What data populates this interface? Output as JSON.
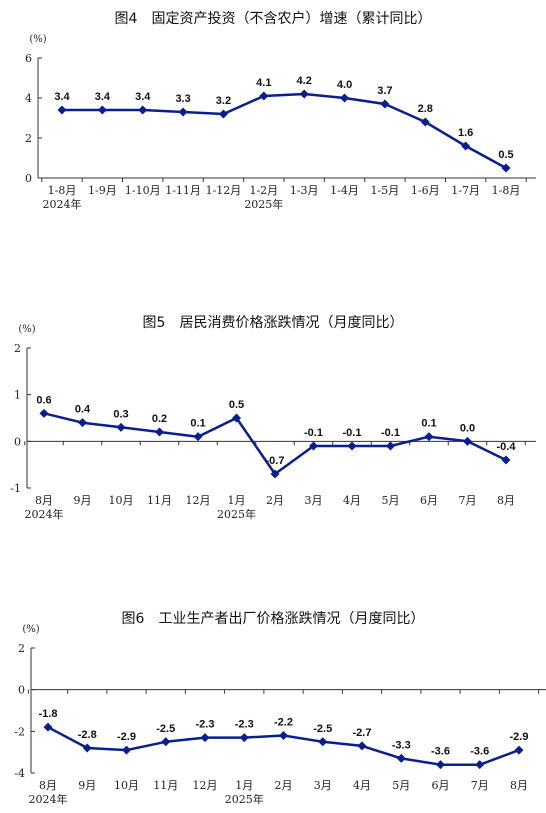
{
  "chart_data": [
    {
      "type": "line",
      "title": "图4　固定资产投资（不含农户）增速（累计同比）",
      "unit": "(%)",
      "ylim": [
        0,
        6
      ],
      "yticks": [
        0,
        2,
        4,
        6
      ],
      "categories": [
        "1-8月",
        "1-9月",
        "1-10月",
        "1-11月",
        "1-12月",
        "1-2月",
        "1-3月",
        "1-4月",
        "1-5月",
        "1-6月",
        "1-7月",
        "1-8月"
      ],
      "year_labels": [
        {
          "index": 0,
          "text": "2024年"
        },
        {
          "index": 5,
          "text": "2025年"
        }
      ],
      "values": [
        3.4,
        3.4,
        3.4,
        3.3,
        3.2,
        4.1,
        4.2,
        4.0,
        3.7,
        2.8,
        1.6,
        0.5
      ],
      "value_labels": [
        "3.4",
        "3.4",
        "3.4",
        "3.3",
        "3.2",
        "4.1",
        "4.2",
        "4.0",
        "3.7",
        "2.8",
        "1.6",
        "0.5"
      ],
      "color": "#0a1f8f",
      "grid": false
    },
    {
      "type": "line",
      "title": "图5　居民消费价格涨跌情况（月度同比）",
      "unit": "(%)",
      "ylim": [
        -1,
        2
      ],
      "yticks": [
        -1,
        0,
        1,
        2
      ],
      "categories": [
        "8月",
        "9月",
        "10月",
        "11月",
        "12月",
        "1月",
        "2月",
        "3月",
        "4月",
        "5月",
        "6月",
        "7月",
        "8月"
      ],
      "year_labels": [
        {
          "index": 0,
          "text": "2024年"
        },
        {
          "index": 5,
          "text": "2025年"
        }
      ],
      "values": [
        0.6,
        0.4,
        0.3,
        0.2,
        0.1,
        0.5,
        -0.7,
        -0.1,
        -0.1,
        -0.1,
        0.1,
        0.0,
        -0.4
      ],
      "value_labels": [
        "0.6",
        "0.4",
        "0.3",
        "0.2",
        "0.1",
        "0.5",
        "-0.7",
        "-0.1",
        "-0.1",
        "-0.1",
        "0.1",
        "0.0",
        "-0.4"
      ],
      "color": "#0a1f8f",
      "grid": false
    },
    {
      "type": "line",
      "title": "图6　工业生产者出厂价格涨跌情况（月度同比）",
      "unit": "(%)",
      "ylim": [
        -4,
        2
      ],
      "yticks": [
        -4,
        -2,
        0,
        2
      ],
      "categories": [
        "8月",
        "9月",
        "10月",
        "11月",
        "12月",
        "1月",
        "2月",
        "3月",
        "4月",
        "5月",
        "6月",
        "7月",
        "8月"
      ],
      "year_labels": [
        {
          "index": 0,
          "text": "2024年"
        },
        {
          "index": 5,
          "text": "2025年"
        }
      ],
      "values": [
        -1.8,
        -2.8,
        -2.9,
        -2.5,
        -2.3,
        -2.3,
        -2.2,
        -2.5,
        -2.7,
        -3.3,
        -3.6,
        -3.6,
        -2.9
      ],
      "value_labels": [
        "-1.8",
        "-2.8",
        "-2.9",
        "-2.5",
        "-2.3",
        "-2.3",
        "-2.2",
        "-2.5",
        "-2.7",
        "-3.3",
        "-3.6",
        "-3.6",
        "-2.9"
      ],
      "color": "#0a1f8f",
      "grid": false
    }
  ]
}
